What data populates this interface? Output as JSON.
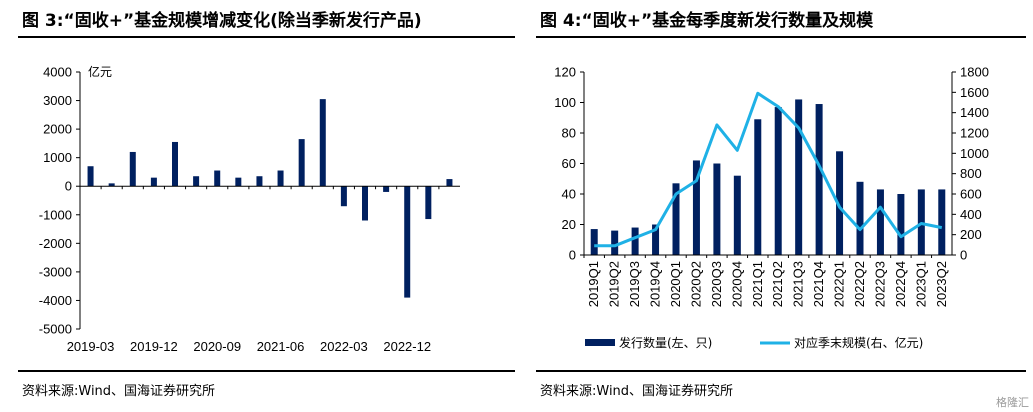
{
  "left": {
    "title": "图 3:“固收+”基金规模增减变化(除当季新发行产品)",
    "source": "资料来源:Wind、国海证券研究所"
  },
  "right": {
    "title": "图 4:“固收+”基金每季度新发行数量及规模",
    "source": "资料来源:Wind、国海证券研究所"
  },
  "watermark": "格隆汇",
  "colors": {
    "bar": "#002060",
    "line": "#1fb1e6"
  },
  "chart_data": [
    {
      "type": "bar",
      "title": "图 3:“固收+”基金规模增减变化(除当季新发行产品)",
      "ylabel": "亿元",
      "xlabel": "",
      "categories": [
        "2019-03",
        "2019-06",
        "2019-09",
        "2019-12",
        "2020-03",
        "2020-06",
        "2020-09",
        "2020-12",
        "2021-03",
        "2021-06",
        "2021-09",
        "2021-12",
        "2022-03",
        "2022-06",
        "2022-09",
        "2022-12",
        "2023-03",
        "2023-06"
      ],
      "tick_labels": [
        "2019-03",
        "2019-12",
        "2020-09",
        "2021-06",
        "2022-03",
        "2022-12"
      ],
      "values": [
        700,
        100,
        1200,
        300,
        1550,
        350,
        550,
        300,
        350,
        550,
        1650,
        3050,
        -700,
        -1200,
        -200,
        -3900,
        -1150,
        250
      ],
      "ylim": [
        -5000,
        4000
      ],
      "yticks": [
        4000,
        3000,
        2000,
        1000,
        0,
        -1000,
        -2000,
        -3000,
        -4000,
        -5000
      ],
      "grid": false,
      "legend": "none"
    },
    {
      "type": "bar",
      "title": "图 4:“固收+”基金每季度新发行数量及规模",
      "categories": [
        "2019Q1",
        "2019Q2",
        "2019Q3",
        "2019Q4",
        "2020Q1",
        "2020Q2",
        "2020Q3",
        "2020Q4",
        "2021Q1",
        "2021Q2",
        "2021Q3",
        "2021Q4",
        "2022Q1",
        "2022Q2",
        "2022Q3",
        "2022Q4",
        "2023Q1",
        "2023Q2"
      ],
      "series": [
        {
          "name": "发行数量(左、只)",
          "type": "bar",
          "axis": "left",
          "values": [
            17,
            16,
            18,
            20,
            47,
            62,
            60,
            52,
            89,
            97,
            102,
            99,
            68,
            48,
            43,
            40,
            43,
            43
          ]
        },
        {
          "name": "对应季末规模(右、亿元)",
          "type": "line",
          "axis": "right",
          "values": [
            90,
            90,
            170,
            250,
            600,
            730,
            1280,
            1030,
            1590,
            1460,
            1250,
            880,
            470,
            250,
            470,
            180,
            310,
            270
          ]
        }
      ],
      "ylim_left": [
        0,
        120
      ],
      "yticks_left": [
        0,
        20,
        40,
        60,
        80,
        100,
        120
      ],
      "ylim_right": [
        0,
        1800
      ],
      "yticks_right": [
        0,
        200,
        400,
        600,
        800,
        1000,
        1200,
        1400,
        1600,
        1800
      ],
      "grid": false,
      "legend": "bottom"
    }
  ]
}
